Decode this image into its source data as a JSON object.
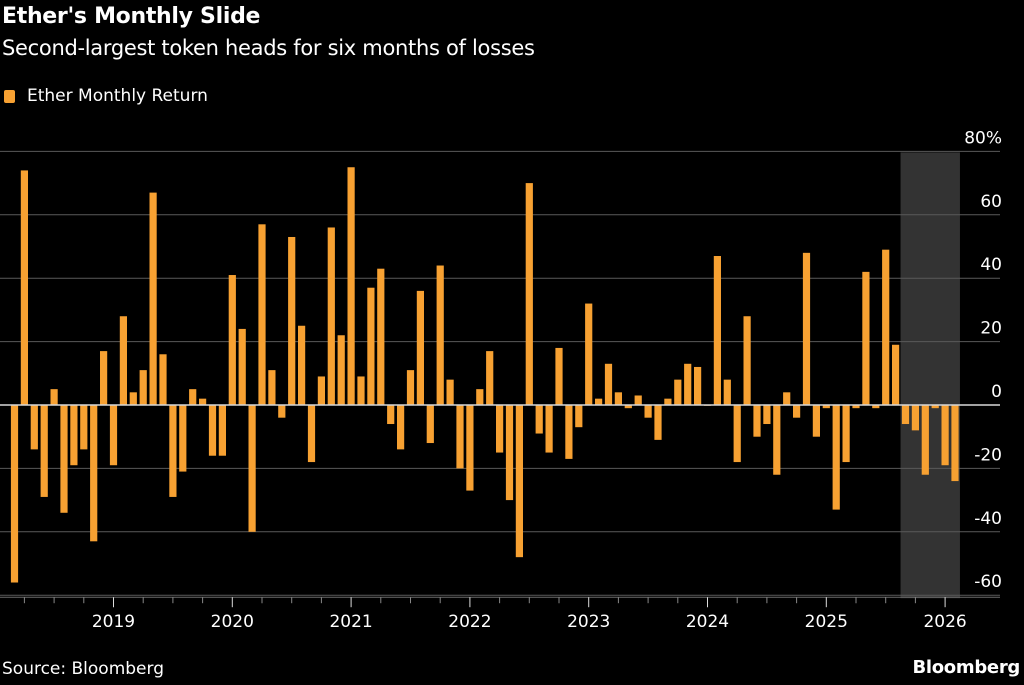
{
  "chart_data": {
    "type": "bar",
    "title": "Ether's Monthly Slide",
    "subtitle": "Second-largest token heads for six months of losses",
    "legend": [
      {
        "name": "Ether Monthly Return",
        "color": "#f7a132"
      }
    ],
    "legend_position": "top-left",
    "start_month": "2018-03",
    "end_month": "2026-02",
    "values": [
      -56,
      74,
      -14,
      -29,
      5,
      -34,
      -19,
      -14,
      -43,
      17,
      -19,
      28,
      4,
      11,
      67,
      16,
      -29,
      -21,
      5,
      2,
      -16,
      -16,
      41,
      24,
      -40,
      57,
      11,
      -4,
      53,
      25,
      -18,
      9,
      56,
      22,
      75,
      9,
      37,
      43,
      -6,
      -14,
      11,
      36,
      -12,
      44,
      8,
      -20,
      -27,
      5,
      17,
      -15,
      -30,
      -48,
      70,
      -9,
      -15,
      18,
      -17,
      -7,
      32,
      2,
      13,
      4,
      -1,
      3,
      -4,
      -11,
      2,
      8,
      13,
      12,
      0,
      47,
      8,
      -18,
      28,
      -10,
      -6,
      -22,
      4,
      -4,
      48,
      -10,
      -1,
      -33,
      -18,
      -1,
      42,
      -1,
      49,
      19,
      -6,
      -8,
      -22,
      -1,
      -19,
      -24
    ],
    "x_tick_labels": [
      "2019",
      "2020",
      "2021",
      "2022",
      "2023",
      "2024",
      "2025",
      "2026"
    ],
    "y_tick_labels": [
      "80%",
      "60",
      "40",
      "20",
      "0",
      "-20",
      "-40",
      "-60"
    ],
    "y_ticks": [
      80,
      60,
      40,
      20,
      0,
      -20,
      -40,
      -60
    ],
    "ylim": [
      -60,
      80
    ],
    "grid": true,
    "highlight": {
      "from": "2025-09",
      "to": "2026-02",
      "color": "#333333"
    },
    "bar_color": "#f7a132"
  },
  "footer": {
    "source": "Source: Bloomberg",
    "brand": "Bloomberg"
  }
}
